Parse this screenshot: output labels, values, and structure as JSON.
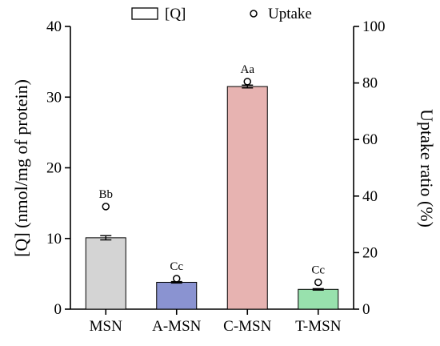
{
  "chart_data": {
    "type": "bar",
    "categories": [
      "MSN",
      "A-MSN",
      "C-MSN",
      "T-MSN"
    ],
    "legend": {
      "placement": "top-center",
      "entries": [
        {
          "label": "[Q]",
          "marker": "bar"
        },
        {
          "label": "Uptake",
          "marker": "open-circle"
        }
      ]
    },
    "series": [
      {
        "name": "[Q]",
        "axis": "left",
        "values": [
          10.1,
          3.8,
          31.5,
          2.8
        ],
        "errors": [
          0.3,
          0.1,
          0.2,
          0.1
        ],
        "colors": [
          "#d4d4d4",
          "#8a93d1",
          "#e7b3b1",
          "#98e1ad"
        ]
      },
      {
        "name": "Uptake",
        "axis": "right",
        "values": [
          36.3,
          10.8,
          80.5,
          9.5
        ],
        "significance": [
          "Bb",
          "Cc",
          "Aa",
          "Cc"
        ]
      }
    ],
    "y_left": {
      "label": "[Q] (nmol/mg of protein)",
      "range": [
        0,
        40
      ],
      "ticks": [
        "0",
        "10",
        "20",
        "30",
        "40"
      ]
    },
    "y_right": {
      "label": "Uptake ratio (%)",
      "range": [
        0,
        100
      ],
      "ticks": [
        "0",
        "20",
        "40",
        "60",
        "80",
        "100"
      ]
    },
    "grid": false
  }
}
